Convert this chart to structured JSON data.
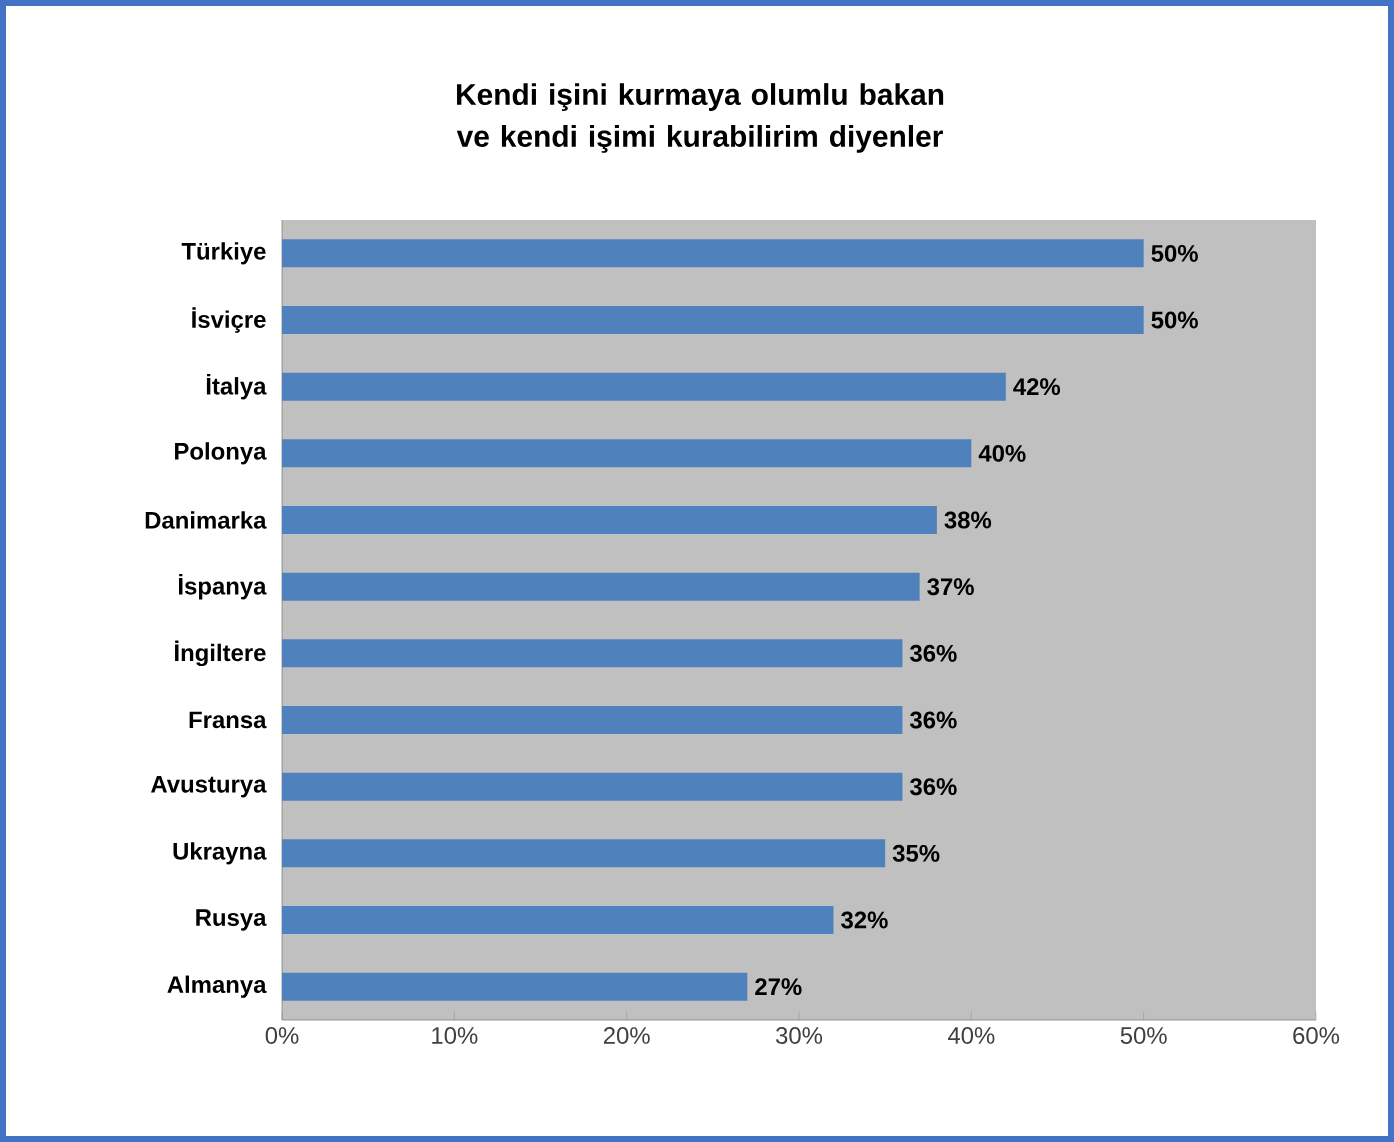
{
  "chart_data": {
    "type": "bar",
    "orientation": "horizontal",
    "title": "Kendi işini kurmaya olumlu bakan ve kendi işimi kurabilirim diyenler",
    "categories": [
      "Türkiye",
      "İsviçre",
      "İtalya",
      "Polonya",
      "Danimarka",
      "İspanya",
      "İngiltere",
      "Fransa",
      "Avusturya",
      "Ukrayna",
      "Rusya",
      "Almanya"
    ],
    "values": [
      50,
      50,
      42,
      40,
      38,
      37,
      36,
      36,
      36,
      35,
      32,
      27
    ],
    "value_labels": [
      "50%",
      "50%",
      "42%",
      "40%",
      "38%",
      "37%",
      "36%",
      "36%",
      "36%",
      "35%",
      "32%",
      "27%"
    ],
    "color": "#4f81bd",
    "xlim": [
      0,
      60
    ],
    "xticks": [
      {
        "value": 0,
        "label": "0%"
      },
      {
        "value": 10,
        "label": "10%"
      },
      {
        "value": 20,
        "label": "20%"
      },
      {
        "value": 30,
        "label": "30%"
      },
      {
        "value": 40,
        "label": "40%"
      },
      {
        "value": 50,
        "label": "50%"
      },
      {
        "value": 60,
        "label": "60%"
      }
    ],
    "grid": false
  }
}
